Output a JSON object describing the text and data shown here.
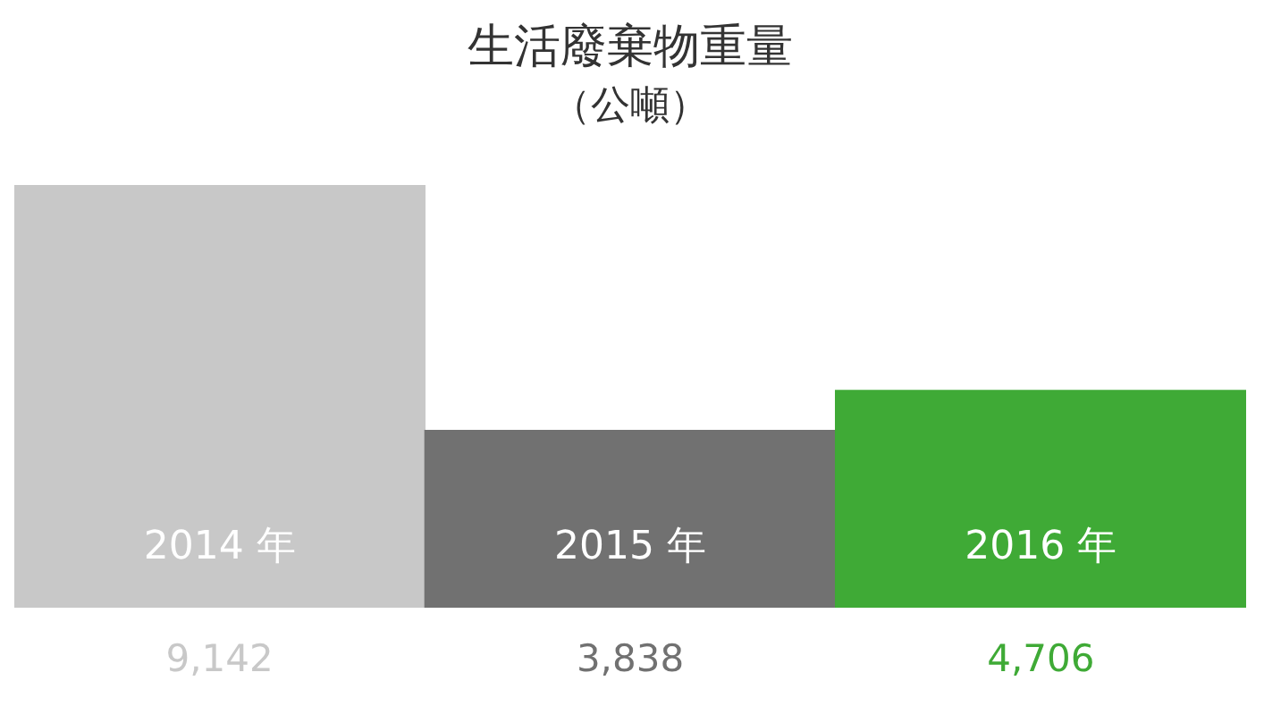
{
  "chart_data": {
    "type": "bar",
    "title": "生活廢棄物重量",
    "subtitle": "（公噸）",
    "categories": [
      "2014 年",
      "2015 年",
      "2016 年"
    ],
    "values": [
      9142,
      3838,
      4706
    ],
    "colors": [
      "#c8c8c8",
      "#717171",
      "#3faa36"
    ],
    "value_labels": [
      "9,142",
      "3,838",
      "4,706"
    ]
  }
}
